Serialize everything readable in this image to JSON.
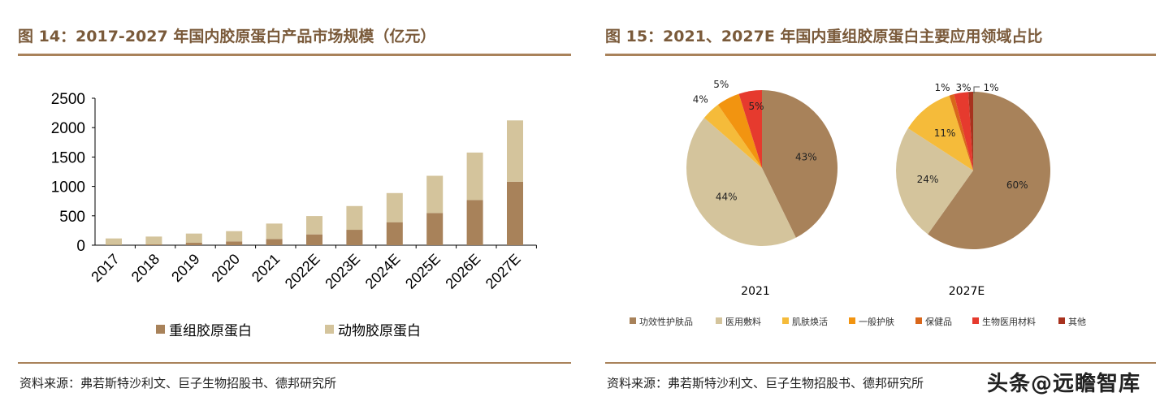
{
  "left": {
    "title": "图 14：2017-2027 年国内胶原蛋白产品市场规模（亿元）",
    "source": "资料来源：弗若斯特沙利文、巨子生物招股书、德邦研究所"
  },
  "right": {
    "title": "图 15：2021、2027E 年国内重组胶原蛋白主要应用领域占比",
    "source": "资料来源：弗若斯特沙利文、巨子生物招股书、德邦研究所"
  },
  "watermark": "头条@远瞻智库",
  "chart_data": [
    {
      "type": "bar",
      "stacked": true,
      "categories": [
        "2017",
        "2018",
        "2019",
        "2020",
        "2021",
        "2022E",
        "2023E",
        "2024E",
        "2025E",
        "2026E",
        "2027E"
      ],
      "series": [
        {
          "name": "重组胶原蛋白",
          "color": "#a8825a",
          "values": [
            5,
            14,
            41,
            64,
            106,
            184,
            262,
            391,
            547,
            767,
            1080
          ]
        },
        {
          "name": "动物胶原蛋白",
          "color": "#d4c49c",
          "values": [
            110,
            133,
            157,
            175,
            262,
            312,
            404,
            496,
            634,
            809,
            1043
          ]
        }
      ],
      "yticks": [
        0,
        500,
        1000,
        1500,
        2000,
        2500
      ],
      "ylim": [
        0,
        2500
      ],
      "legend": "bottom",
      "grid": false
    },
    {
      "type": "pie",
      "categories": [
        "功效性护肤品",
        "医用敷料",
        "肌肤焕活",
        "一般护肤",
        "保健品",
        "生物医用材料",
        "其他"
      ],
      "colors": [
        "#a8825a",
        "#d4c49c",
        "#f5bb3a",
        "#f29410",
        "#d9661a",
        "#e63a2e",
        "#a8321e"
      ],
      "pies": [
        {
          "label": "2021",
          "values": [
            43,
            44,
            4,
            5,
            0,
            5,
            0
          ],
          "labels": [
            "43%",
            "44%",
            "4%",
            "5%",
            "",
            "5%",
            ""
          ]
        },
        {
          "label": "2027E",
          "values": [
            60,
            24,
            11,
            0,
            1,
            3,
            1
          ],
          "labels": [
            "60%",
            "24%",
            "11%",
            "",
            "1%",
            "3%",
            "1%"
          ]
        }
      ],
      "legend": "bottom"
    }
  ]
}
